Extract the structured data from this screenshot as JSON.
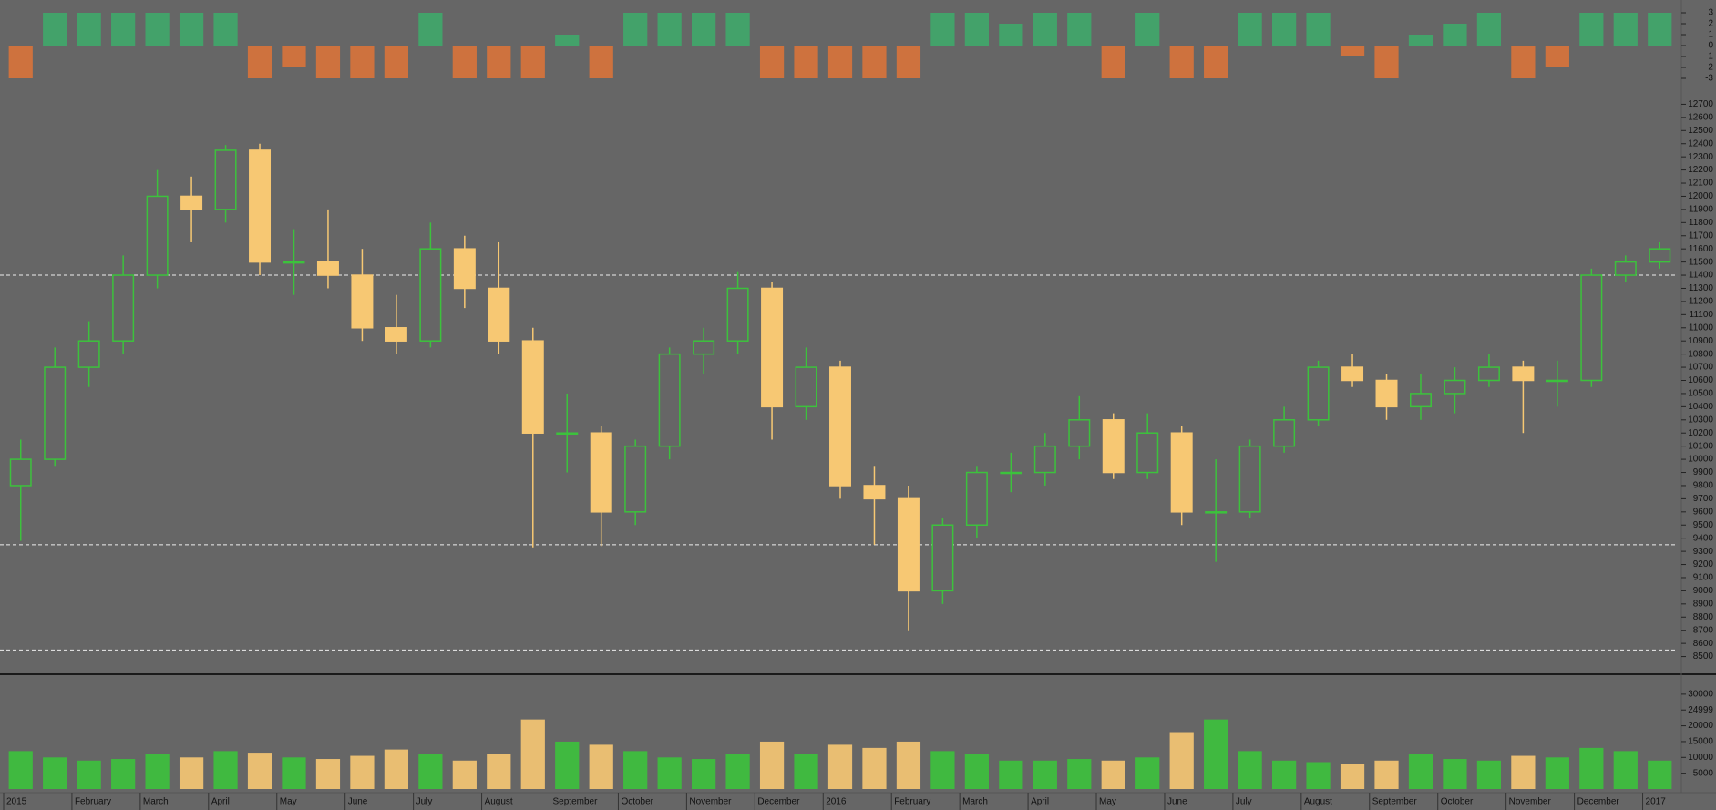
{
  "chart_data": [
    {
      "type": "bar",
      "ylim": [
        -3.5,
        3.5
      ],
      "yticks": [
        3,
        2,
        1,
        0,
        -1,
        -2,
        -3
      ],
      "up_color": "#3fa86a",
      "down_color": "#d9733a",
      "values": [
        -3,
        3,
        3,
        3,
        3,
        3,
        3,
        -3,
        -2,
        -3,
        -3,
        -3,
        3,
        -3,
        -3,
        -3,
        1,
        -3,
        3,
        3,
        3,
        3,
        -3,
        -3,
        -3,
        -3,
        -3,
        3,
        3,
        2,
        3,
        3,
        -3,
        3,
        -3,
        -3,
        3,
        3,
        3,
        -1,
        -3,
        1,
        2,
        3,
        -3,
        -2,
        3,
        3,
        3
      ]
    },
    {
      "type": "candlestick",
      "ylim": [
        8400,
        12800
      ],
      "yticks": [
        8500,
        8600,
        8700,
        8800,
        8900,
        9000,
        9100,
        9200,
        9300,
        9400,
        9500,
        9600,
        9700,
        9800,
        9900,
        10000,
        10100,
        10200,
        10300,
        10400,
        10500,
        10600,
        10700,
        10800,
        10900,
        11000,
        11100,
        11200,
        11300,
        11400,
        11500,
        11600,
        11700,
        11800,
        11900,
        12000,
        12100,
        12200,
        12300,
        12400,
        12500,
        12600,
        12700
      ],
      "up_color": "#3cc23c",
      "down_color": "#f7c873",
      "levels": [
        11400,
        9350,
        8550
      ],
      "categories": [
        "2015",
        null,
        "February",
        null,
        "March",
        null,
        "April",
        null,
        "May",
        null,
        "June",
        null,
        "July",
        null,
        "August",
        null,
        "September",
        null,
        "October",
        null,
        "November",
        null,
        "December",
        null,
        "2016",
        null,
        "February",
        null,
        "March",
        null,
        "April",
        null,
        "May",
        null,
        "June",
        null,
        "July",
        null,
        "August",
        null,
        "September",
        null,
        "October",
        null,
        "November",
        null,
        "December",
        null,
        "2017"
      ],
      "open": [
        9800,
        10000,
        10700,
        10900,
        11400,
        12000,
        11900,
        12350,
        11500,
        11500,
        11400,
        11000,
        10900,
        11600,
        11300,
        10900,
        10200,
        10200,
        9600,
        10100,
        10800,
        10900,
        11300,
        10400,
        10700,
        9800,
        9700,
        9000,
        9500,
        9900,
        9900,
        10100,
        10300,
        9900,
        10200,
        9600,
        9600,
        10100,
        10300,
        10700,
        10600,
        10400,
        10500,
        10600,
        10700,
        10600,
        10600,
        11400,
        11500
      ],
      "high": [
        10150,
        10850,
        11050,
        11550,
        12200,
        12150,
        12390,
        12400,
        11750,
        11900,
        11600,
        11250,
        11800,
        11700,
        11650,
        11000,
        10500,
        10250,
        10150,
        10850,
        11000,
        11430,
        11350,
        10850,
        10750,
        9950,
        9800,
        9550,
        9950,
        10050,
        10200,
        10480,
        10350,
        10350,
        10250,
        10000,
        10150,
        10400,
        10750,
        10800,
        10650,
        10650,
        10700,
        10800,
        10750,
        10750,
        11450,
        11550,
        11650
      ],
      "low": [
        9380,
        9950,
        10550,
        10800,
        11300,
        11650,
        11800,
        11400,
        11250,
        11300,
        10900,
        10800,
        10850,
        11150,
        10800,
        9330,
        9900,
        9340,
        9500,
        10000,
        10650,
        10800,
        10150,
        10300,
        9700,
        9350,
        8700,
        8900,
        9400,
        9750,
        9800,
        10000,
        9850,
        9850,
        9500,
        9220,
        9550,
        10050,
        10250,
        10550,
        10300,
        10300,
        10350,
        10550,
        10200,
        10400,
        10550,
        11350,
        11450
      ],
      "close": [
        10000,
        10700,
        10900,
        11400,
        12000,
        11900,
        12350,
        11500,
        11500,
        11400,
        11000,
        10900,
        11600,
        11300,
        10900,
        10200,
        10200,
        9600,
        10100,
        10800,
        10900,
        11300,
        10400,
        10700,
        9800,
        9700,
        9000,
        9500,
        9900,
        9900,
        10100,
        10300,
        9900,
        10200,
        9600,
        9600,
        10100,
        10300,
        10700,
        10600,
        10400,
        10500,
        10600,
        10700,
        10600,
        10600,
        11400,
        11500,
        11600
      ]
    },
    {
      "type": "bar",
      "ylim": [
        0,
        34000
      ],
      "yticks": [
        30000,
        24999,
        20000,
        15000,
        10000,
        5000
      ],
      "values": [
        12000,
        10000,
        9000,
        9500,
        11000,
        10000,
        12000,
        11500,
        10000,
        9500,
        10500,
        12500,
        11000,
        9000,
        11000,
        22000,
        15000,
        14000,
        12000,
        10000,
        9500,
        11000,
        15000,
        11000,
        14000,
        13000,
        15000,
        12000,
        11000,
        9000,
        9000,
        9500,
        9000,
        10000,
        18000,
        22000,
        12000,
        9000,
        8500,
        8000,
        9000,
        11000,
        9500,
        9000,
        10500,
        10000,
        13000,
        12000,
        9000
      ]
    }
  ]
}
